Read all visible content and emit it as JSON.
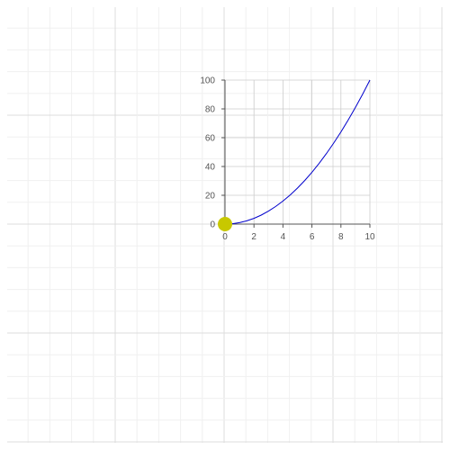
{
  "chart_data": {
    "type": "line",
    "title": "",
    "xlabel": "",
    "ylabel": "",
    "xlim": [
      0,
      10
    ],
    "ylim": [
      0,
      100
    ],
    "x_ticks": [
      "0",
      "2",
      "4",
      "6",
      "8",
      "10"
    ],
    "y_ticks": [
      "0",
      "20",
      "40",
      "60",
      "80",
      "100"
    ],
    "grid": true,
    "series": [
      {
        "x": [
          0,
          0.5,
          1,
          1.5,
          2,
          2.5,
          3,
          3.5,
          4,
          4.5,
          5,
          5.5,
          6,
          6.5,
          7,
          7.5,
          8,
          8.5,
          9,
          9.5,
          10
        ],
        "y": [
          0,
          0.25,
          1,
          2.25,
          4,
          6.25,
          9,
          12.25,
          16,
          20.25,
          25,
          30.25,
          36,
          42.25,
          49,
          56.25,
          64,
          72.25,
          81,
          90.25,
          100
        ],
        "color": "#0000cc"
      }
    ],
    "marker": {
      "x": 0,
      "y": 0,
      "color": "#c8c800"
    }
  },
  "colors": {
    "background": "#ffffff",
    "minor_grid": "#f0f0f0",
    "major_grid": "#dcdcdc",
    "plot_grid": "#cccccc",
    "axis": "#555555"
  }
}
